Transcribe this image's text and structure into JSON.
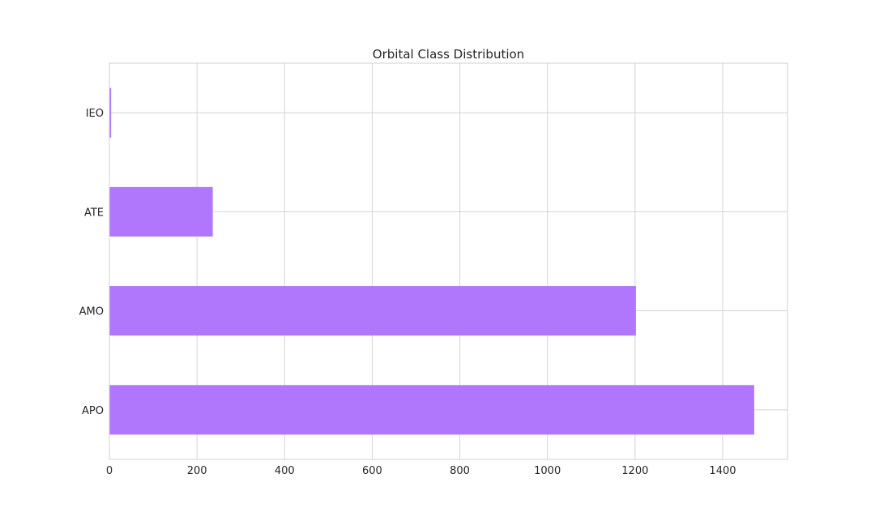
{
  "chart_data": {
    "type": "bar",
    "orientation": "horizontal",
    "title": "Orbital Class Distribution",
    "xlabel": "",
    "ylabel": "",
    "categories": [
      "APO",
      "AMO",
      "ATE",
      "IEO"
    ],
    "values": [
      1472,
      1202,
      236,
      4
    ],
    "xlim": [
      0,
      1548
    ],
    "xticks": [
      0,
      200,
      400,
      600,
      800,
      1000,
      1200,
      1400
    ],
    "bar_color": "#b077fd",
    "grid": true
  }
}
